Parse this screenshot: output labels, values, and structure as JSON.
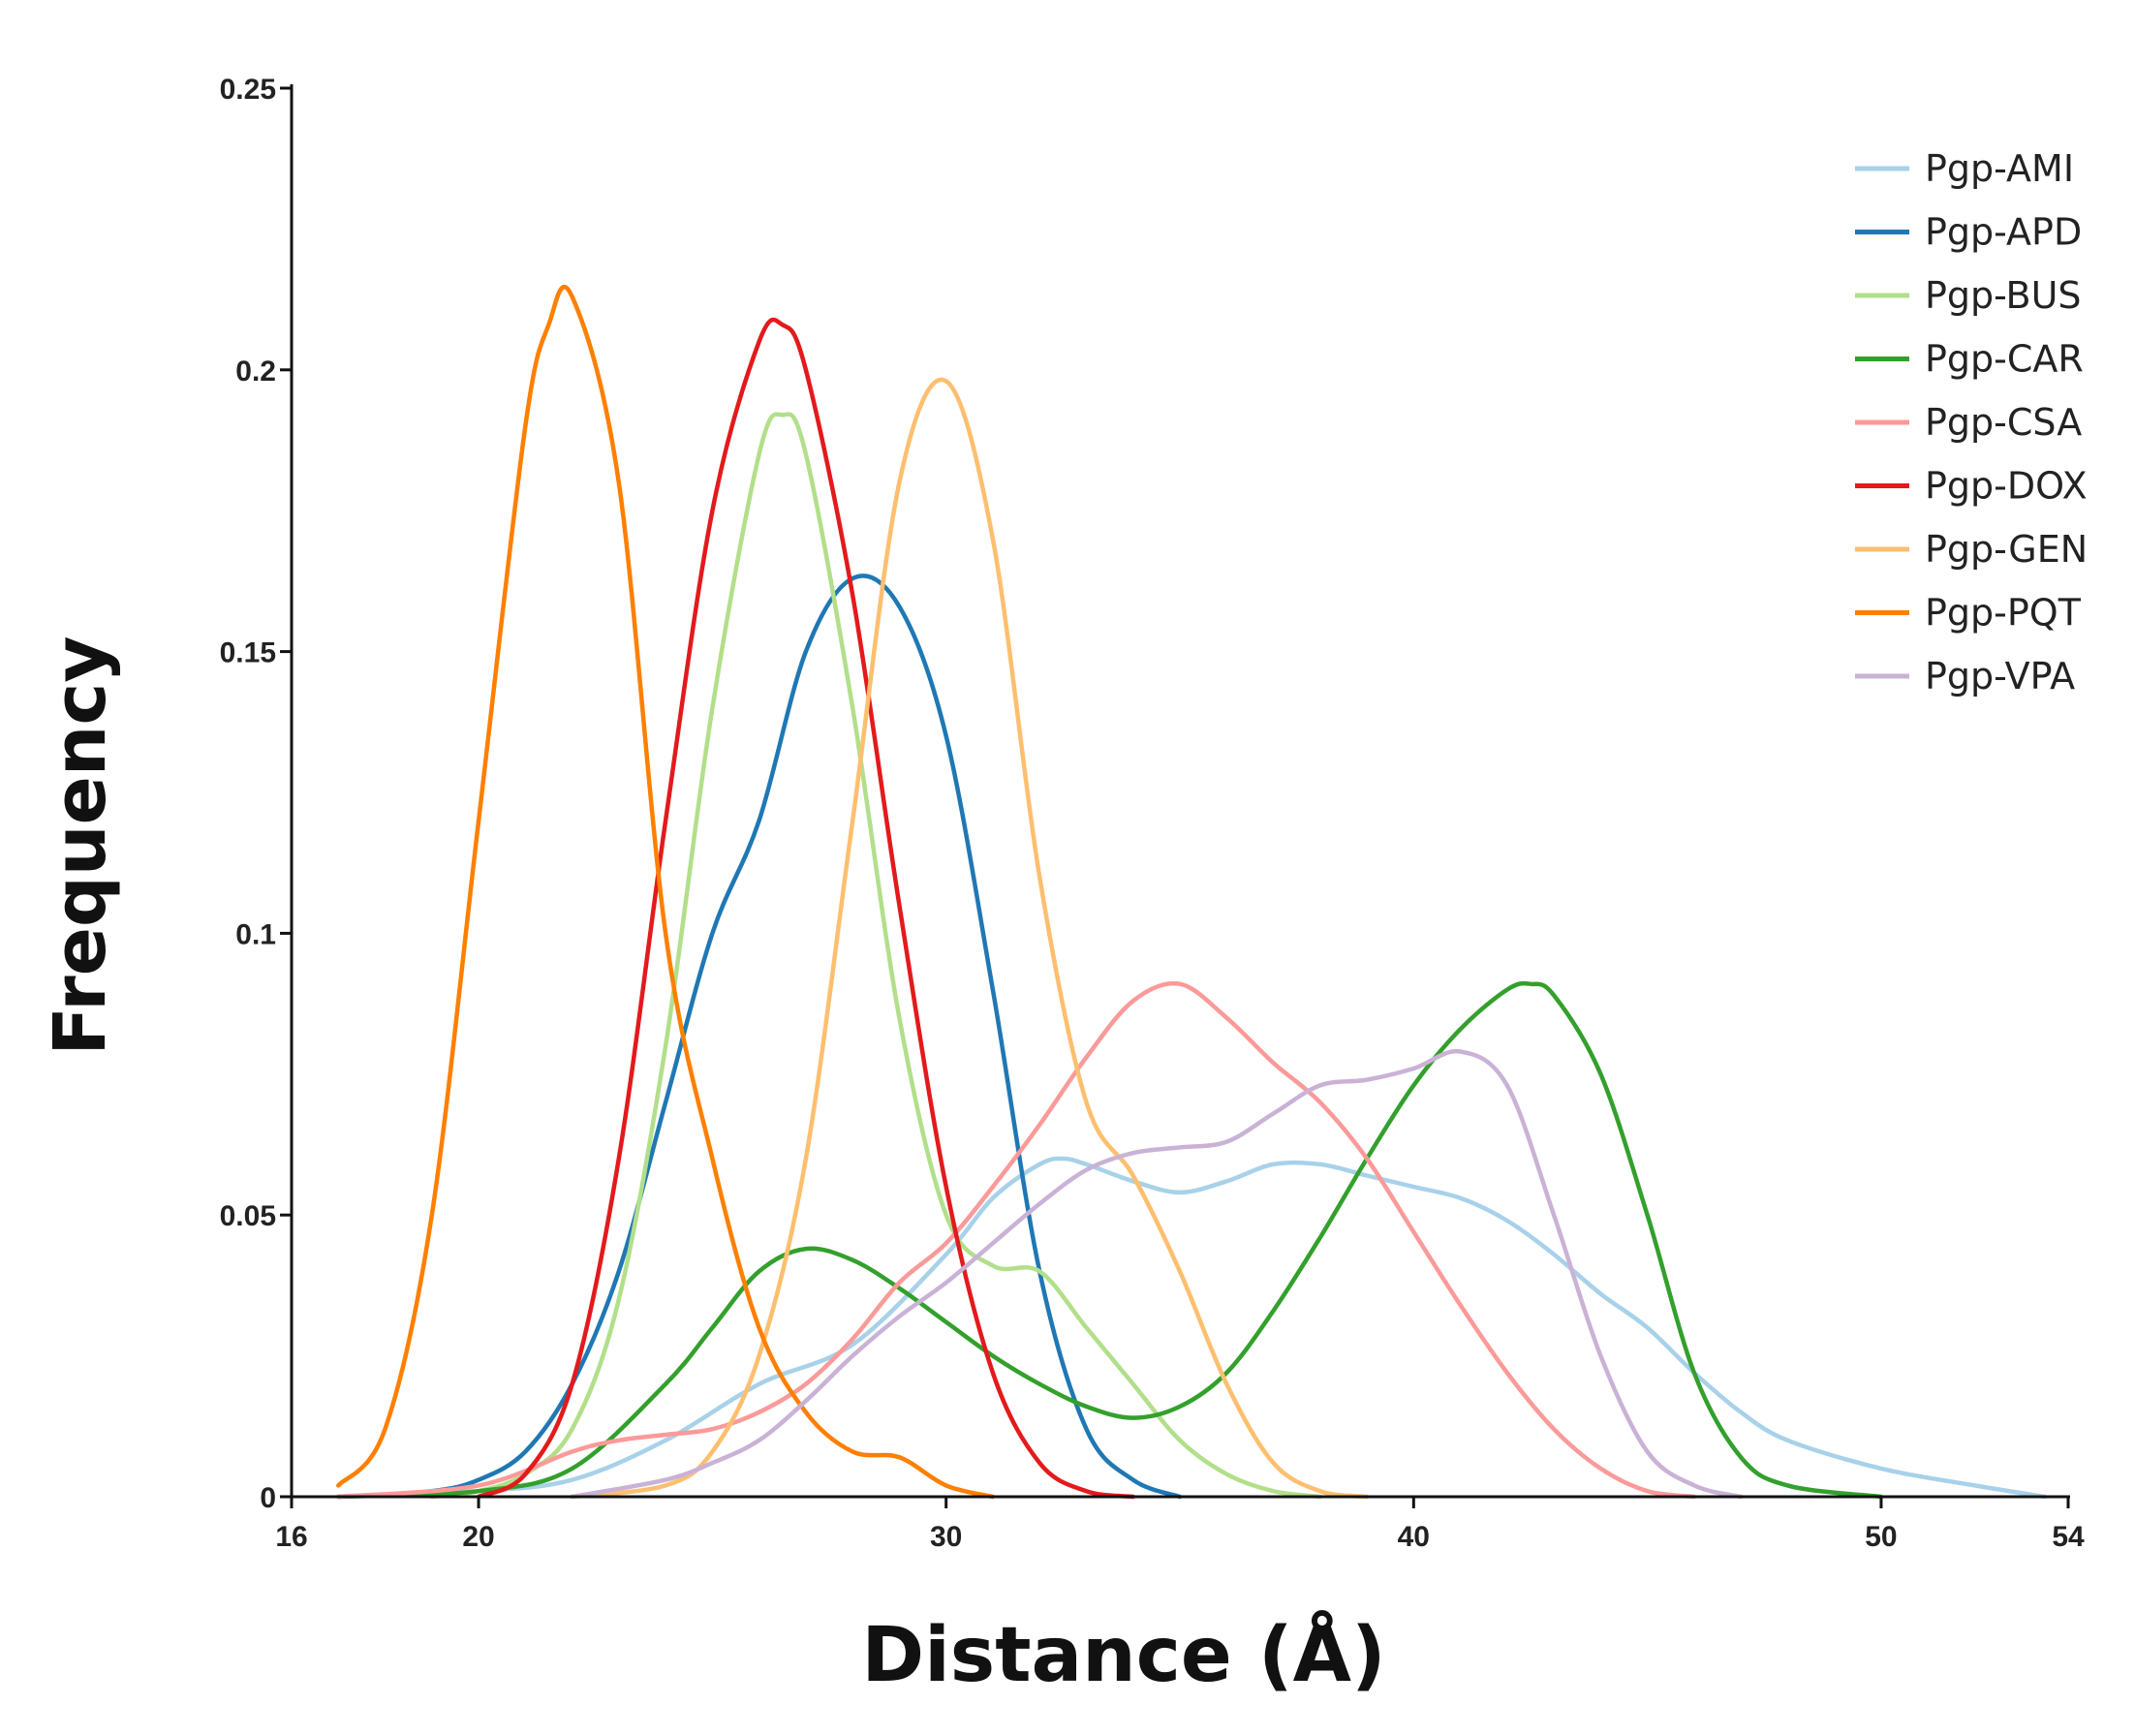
{
  "chart_data": {
    "type": "line",
    "title": "",
    "xlabel": "Distance (Å)",
    "ylabel": "Frequency",
    "xlim": [
      16,
      54
    ],
    "ylim": [
      0,
      0.25
    ],
    "x_ticks": [
      16,
      20,
      30,
      40,
      50,
      54
    ],
    "y_ticks": [
      0,
      0.05,
      0.1,
      0.15,
      0.2,
      0.25
    ],
    "y_tick_labels": [
      "0",
      "0.05",
      "0.1",
      "0.15",
      "0.2",
      "0.25"
    ],
    "grid": false,
    "legend_position": "top-right",
    "series": [
      {
        "name": "Pgp-AMI",
        "color": "#a8d1ea",
        "x": [
          17,
          20,
          22,
          24,
          26,
          28,
          30,
          31,
          32,
          32.5,
          33,
          34,
          35,
          36,
          37,
          38,
          39,
          40,
          41,
          42,
          43,
          44,
          45,
          46,
          47,
          48,
          50,
          52,
          53.5
        ],
        "y": [
          0,
          0.001,
          0.003,
          0.01,
          0.02,
          0.027,
          0.043,
          0.053,
          0.059,
          0.06,
          0.059,
          0.056,
          0.054,
          0.056,
          0.059,
          0.059,
          0.057,
          0.055,
          0.053,
          0.049,
          0.043,
          0.036,
          0.03,
          0.022,
          0.015,
          0.01,
          0.005,
          0.002,
          0
        ]
      },
      {
        "name": "Pgp-APD",
        "color": "#1f78b4",
        "x": [
          17,
          19,
          20,
          21,
          22,
          23,
          24,
          25,
          26,
          27,
          28,
          29,
          30,
          31,
          32,
          33,
          34,
          35
        ],
        "y": [
          0,
          0.001,
          0.003,
          0.008,
          0.02,
          0.04,
          0.07,
          0.1,
          0.12,
          0.15,
          0.163,
          0.158,
          0.135,
          0.09,
          0.04,
          0.012,
          0.003,
          0
        ]
      },
      {
        "name": "Pgp-BUS",
        "color": "#b2df8a",
        "x": [
          19,
          20,
          21,
          22,
          23,
          24,
          25,
          26,
          26.5,
          27,
          28,
          29,
          30,
          31,
          32,
          33,
          34,
          35,
          36,
          37,
          38
        ],
        "y": [
          0,
          0.001,
          0.004,
          0.012,
          0.035,
          0.08,
          0.14,
          0.185,
          0.192,
          0.185,
          0.14,
          0.085,
          0.05,
          0.041,
          0.04,
          0.03,
          0.02,
          0.01,
          0.004,
          0.001,
          0
        ]
      },
      {
        "name": "Pgp-CAR",
        "color": "#33a02c",
        "x": [
          17,
          20,
          22,
          24,
          25,
          26,
          27,
          28,
          29,
          30,
          31,
          32,
          33,
          34,
          35,
          36,
          37,
          38,
          39,
          40,
          41,
          42,
          42.5,
          43,
          44,
          45,
          46,
          47,
          48,
          50
        ],
        "y": [
          0,
          0.001,
          0.005,
          0.02,
          0.03,
          0.04,
          0.044,
          0.042,
          0.037,
          0.031,
          0.025,
          0.02,
          0.016,
          0.014,
          0.016,
          0.022,
          0.033,
          0.046,
          0.06,
          0.073,
          0.083,
          0.09,
          0.091,
          0.089,
          0.075,
          0.05,
          0.022,
          0.007,
          0.002,
          0
        ]
      },
      {
        "name": "Pgp-CSA",
        "color": "#fb9a99",
        "x": [
          17,
          20,
          22,
          23,
          24,
          25,
          26,
          27,
          28,
          29,
          30,
          31,
          32,
          33,
          34,
          35,
          36,
          37,
          38,
          39,
          40,
          41,
          42,
          43,
          44,
          45,
          46
        ],
        "y": [
          0,
          0.002,
          0.008,
          0.01,
          0.011,
          0.012,
          0.015,
          0.02,
          0.028,
          0.038,
          0.045,
          0.055,
          0.066,
          0.078,
          0.088,
          0.091,
          0.085,
          0.077,
          0.07,
          0.06,
          0.047,
          0.034,
          0.022,
          0.012,
          0.005,
          0.001,
          0
        ]
      },
      {
        "name": "Pgp-DOX",
        "color": "#e31a1c",
        "x": [
          20,
          21,
          22,
          23,
          24,
          25,
          26,
          26.5,
          27,
          28,
          29,
          30,
          31,
          32,
          33,
          34
        ],
        "y": [
          0,
          0.004,
          0.02,
          0.06,
          0.12,
          0.175,
          0.205,
          0.208,
          0.2,
          0.16,
          0.105,
          0.055,
          0.022,
          0.006,
          0.001,
          0
        ]
      },
      {
        "name": "Pgp-GEN",
        "color": "#fdbf6f",
        "x": [
          22,
          24,
          25,
          26,
          27,
          28,
          29,
          30,
          31,
          32,
          33,
          34,
          35,
          36,
          37,
          38,
          39
        ],
        "y": [
          0,
          0.002,
          0.008,
          0.025,
          0.06,
          0.12,
          0.18,
          0.198,
          0.17,
          0.11,
          0.07,
          0.057,
          0.04,
          0.02,
          0.006,
          0.001,
          0
        ]
      },
      {
        "name": "Pgp-PQT",
        "color": "#ff7f00",
        "x": [
          17,
          18,
          19,
          20,
          21,
          21.5,
          22,
          23,
          24,
          25,
          26,
          27,
          28,
          29,
          30,
          31
        ],
        "y": [
          0.002,
          0.012,
          0.05,
          0.12,
          0.19,
          0.208,
          0.213,
          0.18,
          0.1,
          0.06,
          0.03,
          0.015,
          0.008,
          0.007,
          0.002,
          0
        ]
      },
      {
        "name": "Pgp-VPA",
        "color": "#cab2d6",
        "x": [
          22,
          24,
          25,
          26,
          27,
          28,
          29,
          30,
          31,
          32,
          33,
          34,
          35,
          36,
          37,
          38,
          39,
          40,
          41,
          42,
          43,
          44,
          45,
          46,
          47
        ],
        "y": [
          0,
          0.003,
          0.006,
          0.01,
          0.017,
          0.025,
          0.032,
          0.038,
          0.045,
          0.052,
          0.058,
          0.061,
          0.062,
          0.063,
          0.068,
          0.073,
          0.074,
          0.076,
          0.079,
          0.073,
          0.05,
          0.025,
          0.008,
          0.002,
          0
        ]
      }
    ]
  }
}
